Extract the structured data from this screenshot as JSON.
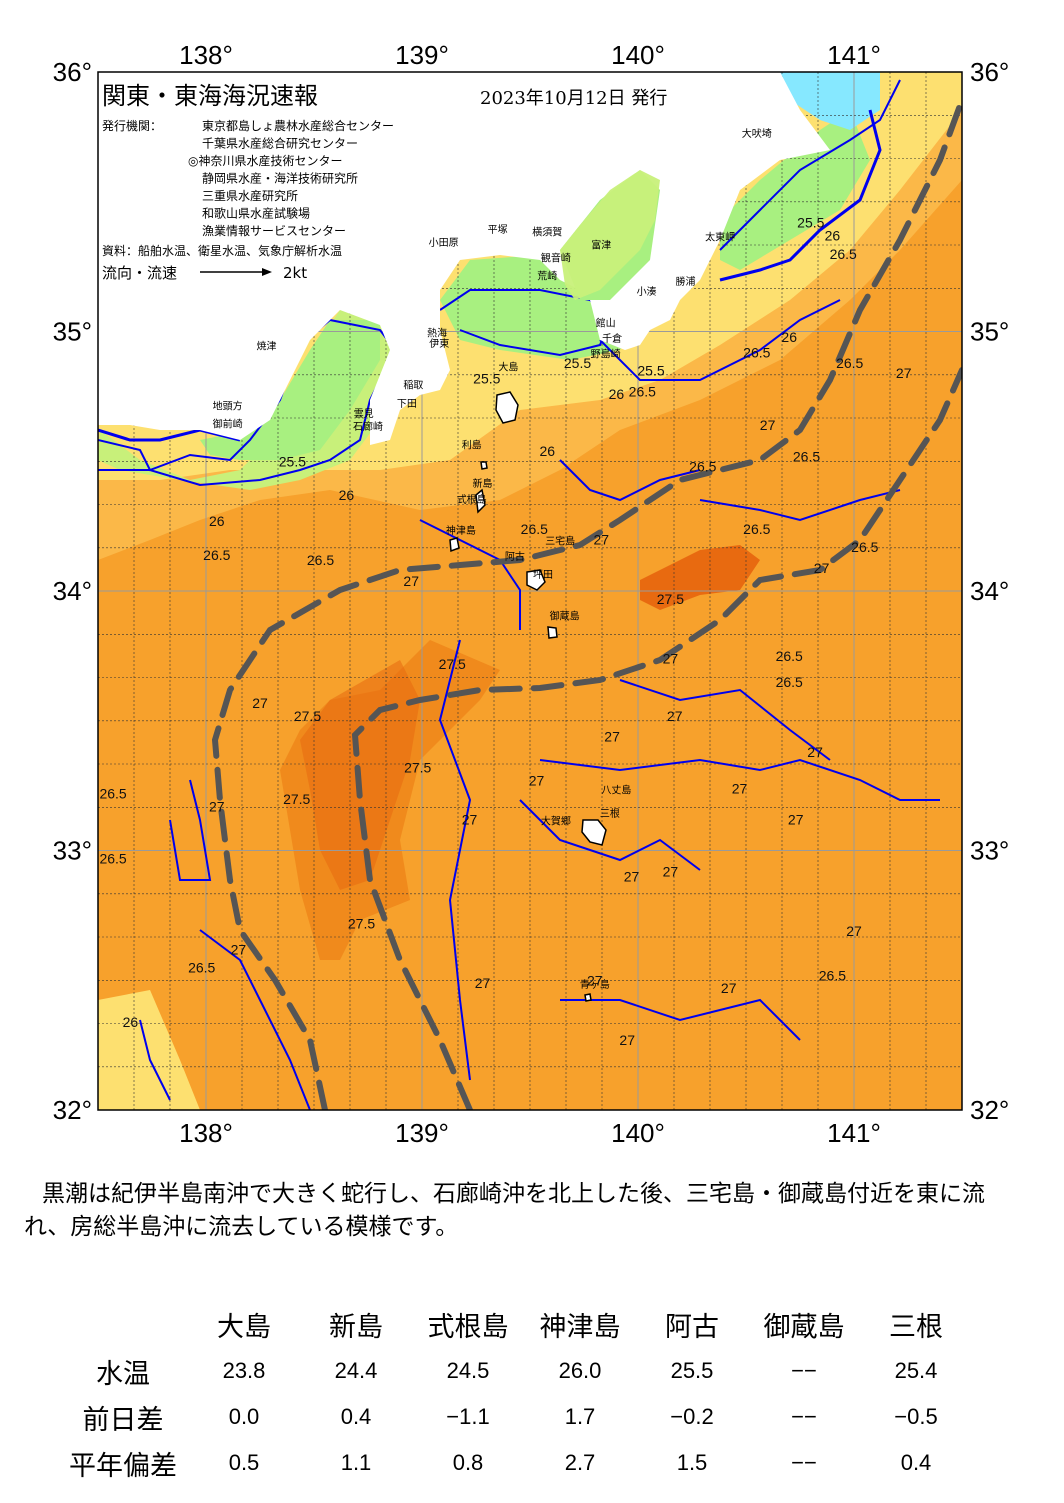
{
  "map": {
    "title": "関東・東海海況速報",
    "issue_date": "2023年10月12日 発行",
    "issuer_label": "発行機関：",
    "issuers": [
      "東京都島しょ農林水産総合センター",
      "千葉県水産総合研究センター",
      "◎神奈川県水産技術センター",
      "静岡県水産・海洋技術研究所",
      "三重県水産研究所",
      "和歌山県水産試験場",
      "漁業情報サービスセンター"
    ],
    "source": "資料：船舶水温、衛星水温、気象庁解析水温",
    "flow_legend_label": "流向・流速",
    "flow_legend_value": "2kt",
    "longitude_labels": [
      "138°",
      "139°",
      "140°",
      "141°"
    ],
    "latitude_labels": [
      "36°",
      "35°",
      "34°",
      "33°",
      "32°"
    ],
    "lon_range": [
      137.5,
      141.5
    ],
    "lat_range": [
      32,
      36
    ],
    "colors": {
      "coast_line": "#0000ee",
      "kuroshio_axis": "#555555",
      "land": "#ffffff",
      "t_cold": "#86e8ff",
      "t_green": "#a8f080",
      "t_lime": "#c8f07a",
      "t_yellow": "#fde070",
      "t_light_orange": "#fbb848",
      "t_orange": "#f7a12c",
      "t_deep_orange": "#f08a1c",
      "t_red_orange": "#e86a10"
    },
    "place_names": [
      {
        "name": "大吠埼",
        "lon": 140.55,
        "lat": 35.75
      },
      {
        "name": "太東岬",
        "lon": 140.38,
        "lat": 35.35
      },
      {
        "name": "勝浦",
        "lon": 140.22,
        "lat": 35.18
      },
      {
        "name": "小湊",
        "lon": 140.04,
        "lat": 35.14
      },
      {
        "name": "富津",
        "lon": 139.83,
        "lat": 35.32
      },
      {
        "name": "横須賀",
        "lon": 139.58,
        "lat": 35.37
      },
      {
        "name": "平塚",
        "lon": 139.35,
        "lat": 35.38
      },
      {
        "name": "小田原",
        "lon": 139.1,
        "lat": 35.33
      },
      {
        "name": "観音崎",
        "lon": 139.62,
        "lat": 35.27
      },
      {
        "name": "荒崎",
        "lon": 139.58,
        "lat": 35.2
      },
      {
        "name": "館山",
        "lon": 139.85,
        "lat": 35.02
      },
      {
        "name": "千倉",
        "lon": 139.88,
        "lat": 34.96
      },
      {
        "name": "野島崎",
        "lon": 139.85,
        "lat": 34.9
      },
      {
        "name": "熱海",
        "lon": 139.07,
        "lat": 34.98
      },
      {
        "name": "伊東",
        "lon": 139.08,
        "lat": 34.94
      },
      {
        "name": "大島",
        "lon": 139.4,
        "lat": 34.85
      },
      {
        "name": "稲取",
        "lon": 138.96,
        "lat": 34.78
      },
      {
        "name": "下田",
        "lon": 138.93,
        "lat": 34.71
      },
      {
        "name": "雲見",
        "lon": 138.73,
        "lat": 34.67
      },
      {
        "name": "石廊崎",
        "lon": 138.75,
        "lat": 34.62
      },
      {
        "name": "焼津",
        "lon": 138.28,
        "lat": 34.93
      },
      {
        "name": "地頭方",
        "lon": 138.1,
        "lat": 34.7
      },
      {
        "name": "御前崎",
        "lon": 138.1,
        "lat": 34.63
      },
      {
        "name": "利島",
        "lon": 139.23,
        "lat": 34.55
      },
      {
        "name": "新島",
        "lon": 139.28,
        "lat": 34.4
      },
      {
        "name": "式根島",
        "lon": 139.23,
        "lat": 34.34
      },
      {
        "name": "神津島",
        "lon": 139.18,
        "lat": 34.22
      },
      {
        "name": "阿古",
        "lon": 139.43,
        "lat": 34.12
      },
      {
        "name": "三宅島",
        "lon": 139.64,
        "lat": 34.18
      },
      {
        "name": "坪田",
        "lon": 139.56,
        "lat": 34.05
      },
      {
        "name": "御蔵島",
        "lon": 139.66,
        "lat": 33.89
      },
      {
        "name": "八丈島",
        "lon": 139.9,
        "lat": 33.22
      },
      {
        "name": "大賀郷",
        "lon": 139.62,
        "lat": 33.1
      },
      {
        "name": "三根",
        "lon": 139.87,
        "lat": 33.13
      },
      {
        "name": "青ヶ島",
        "lon": 139.8,
        "lat": 32.47
      }
    ],
    "isotherm_labels": [
      {
        "t": "25.5",
        "lon": 140.8,
        "lat": 35.4
      },
      {
        "t": "26",
        "lon": 140.9,
        "lat": 35.35
      },
      {
        "t": "26.5",
        "lon": 140.95,
        "lat": 35.28
      },
      {
        "t": "26",
        "lon": 140.7,
        "lat": 34.96
      },
      {
        "t": "26.5",
        "lon": 140.55,
        "lat": 34.9
      },
      {
        "t": "26.5",
        "lon": 140.98,
        "lat": 34.86
      },
      {
        "t": "27",
        "lon": 141.23,
        "lat": 34.82
      },
      {
        "t": "25.5",
        "lon": 140.06,
        "lat": 34.83
      },
      {
        "t": "26.5",
        "lon": 140.02,
        "lat": 34.75
      },
      {
        "t": "26",
        "lon": 139.9,
        "lat": 34.74
      },
      {
        "t": "25.5",
        "lon": 139.72,
        "lat": 34.86
      },
      {
        "t": "25.5",
        "lon": 139.3,
        "lat": 34.8
      },
      {
        "t": "27",
        "lon": 140.6,
        "lat": 34.62
      },
      {
        "t": "26.5",
        "lon": 140.78,
        "lat": 34.5
      },
      {
        "t": "26.5",
        "lon": 140.3,
        "lat": 34.46
      },
      {
        "t": "26",
        "lon": 139.58,
        "lat": 34.52
      },
      {
        "t": "25.5",
        "lon": 138.4,
        "lat": 34.48
      },
      {
        "t": "26",
        "lon": 138.65,
        "lat": 34.35
      },
      {
        "t": "26.5",
        "lon": 139.52,
        "lat": 34.22
      },
      {
        "t": "27",
        "lon": 139.83,
        "lat": 34.18
      },
      {
        "t": "26.5",
        "lon": 140.55,
        "lat": 34.22
      },
      {
        "t": "26.5",
        "lon": 141.05,
        "lat": 34.15
      },
      {
        "t": "26.5",
        "lon": 138.05,
        "lat": 34.12
      },
      {
        "t": "26",
        "lon": 138.05,
        "lat": 34.25
      },
      {
        "t": "26.5",
        "lon": 138.53,
        "lat": 34.1
      },
      {
        "t": "27",
        "lon": 138.95,
        "lat": 34.02
      },
      {
        "t": "27",
        "lon": 140.85,
        "lat": 34.07
      },
      {
        "t": "27.5",
        "lon": 140.15,
        "lat": 33.95
      },
      {
        "t": "27",
        "lon": 140.15,
        "lat": 33.72
      },
      {
        "t": "26.5",
        "lon": 140.7,
        "lat": 33.73
      },
      {
        "t": "26.5",
        "lon": 140.7,
        "lat": 33.63
      },
      {
        "t": "27.5",
        "lon": 139.14,
        "lat": 33.7
      },
      {
        "t": "27",
        "lon": 138.25,
        "lat": 33.55
      },
      {
        "t": "27.5",
        "lon": 138.47,
        "lat": 33.5
      },
      {
        "t": "27",
        "lon": 140.17,
        "lat": 33.5
      },
      {
        "t": "27",
        "lon": 139.88,
        "lat": 33.42
      },
      {
        "t": "27",
        "lon": 140.82,
        "lat": 33.36
      },
      {
        "t": "27.5",
        "lon": 138.98,
        "lat": 33.3
      },
      {
        "t": "27",
        "lon": 139.53,
        "lat": 33.25
      },
      {
        "t": "27",
        "lon": 140.47,
        "lat": 33.22
      },
      {
        "t": "27.5",
        "lon": 138.42,
        "lat": 33.18
      },
      {
        "t": "26.5",
        "lon": 137.57,
        "lat": 33.2
      },
      {
        "t": "27",
        "lon": 138.05,
        "lat": 33.15
      },
      {
        "t": "27",
        "lon": 140.73,
        "lat": 33.1
      },
      {
        "t": "27",
        "lon": 139.22,
        "lat": 33.1
      },
      {
        "t": "26.5",
        "lon": 137.57,
        "lat": 32.95
      },
      {
        "t": "27",
        "lon": 140.15,
        "lat": 32.9
      },
      {
        "t": "27",
        "lon": 139.97,
        "lat": 32.88
      },
      {
        "t": "27.5",
        "lon": 138.72,
        "lat": 32.7
      },
      {
        "t": "27",
        "lon": 141.0,
        "lat": 32.67
      },
      {
        "t": "27",
        "lon": 138.15,
        "lat": 32.6
      },
      {
        "t": "26.5",
        "lon": 137.98,
        "lat": 32.53
      },
      {
        "t": "26.5",
        "lon": 140.9,
        "lat": 32.5
      },
      {
        "t": "27",
        "lon": 139.28,
        "lat": 32.47
      },
      {
        "t": "27",
        "lon": 139.8,
        "lat": 32.48
      },
      {
        "t": "27",
        "lon": 140.42,
        "lat": 32.45
      },
      {
        "t": "26",
        "lon": 137.65,
        "lat": 32.32
      },
      {
        "t": "27",
        "lon": 139.95,
        "lat": 32.25
      }
    ]
  },
  "summary": "黒潮は紀伊半島南沖で大きく蛇行し、石廊崎沖を北上した後、三宅島・御蔵島付近を東に流れ、房総半島沖に流去している模様です。",
  "table": {
    "stations": [
      "大島",
      "新島",
      "式根島",
      "神津島",
      "阿古",
      "御蔵島",
      "三根"
    ],
    "rows": [
      {
        "label": "水温",
        "values": [
          "23.8",
          "24.4",
          "24.5",
          "26.0",
          "25.5",
          "−−",
          "25.4"
        ]
      },
      {
        "label": "前日差",
        "values": [
          "0.0",
          "0.4",
          "−1.1",
          "1.7",
          "−0.2",
          "−−",
          "−0.5"
        ]
      },
      {
        "label": "平年偏差",
        "values": [
          "0.5",
          "1.1",
          "0.8",
          "2.7",
          "1.5",
          "−−",
          "0.4"
        ]
      }
    ]
  }
}
